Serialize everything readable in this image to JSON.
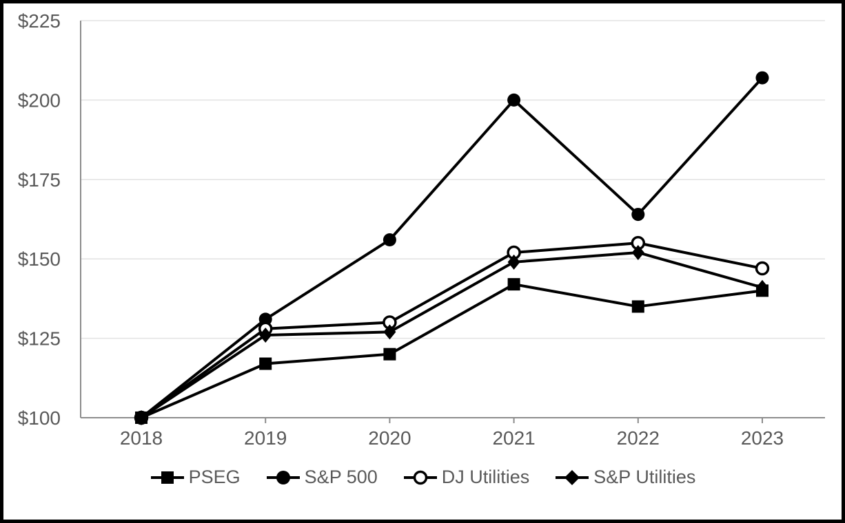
{
  "chart_data": {
    "type": "line",
    "title": "",
    "xlabel": "",
    "ylabel": "",
    "x_labels": [
      "2018",
      "2019",
      "2020",
      "2021",
      "2022",
      "2023"
    ],
    "series": [
      {
        "name": "PSEG",
        "marker": "filled-square",
        "color": "#000000",
        "values": [
          100,
          117,
          120,
          142,
          135,
          140
        ]
      },
      {
        "name": "S&P 500",
        "marker": "filled-circle",
        "color": "#000000",
        "values": [
          100,
          131,
          156,
          200,
          164,
          207
        ]
      },
      {
        "name": "DJ Utilities",
        "marker": "open-circle",
        "color": "#000000",
        "values": [
          100,
          128,
          130,
          152,
          155,
          147
        ]
      },
      {
        "name": "S&P Utilities",
        "marker": "filled-diamond",
        "color": "#000000",
        "values": [
          100,
          126,
          127,
          149,
          152,
          141
        ]
      }
    ],
    "ylim": [
      100,
      225
    ],
    "yticks": [
      100,
      125,
      150,
      175,
      200,
      225
    ],
    "ytick_labels": [
      "$100",
      "$125",
      "$150",
      "$175",
      "$200",
      "$225"
    ],
    "grid": "horizontal",
    "legend_position": "bottom"
  },
  "colors": {
    "background": "#ffffff",
    "frame_border": "#000000",
    "axis": "#8c8c8c",
    "gridline": "#e2e2e2",
    "tick_label": "#595959",
    "series_line": "#000000",
    "open_marker_fill": "#ffffff"
  }
}
